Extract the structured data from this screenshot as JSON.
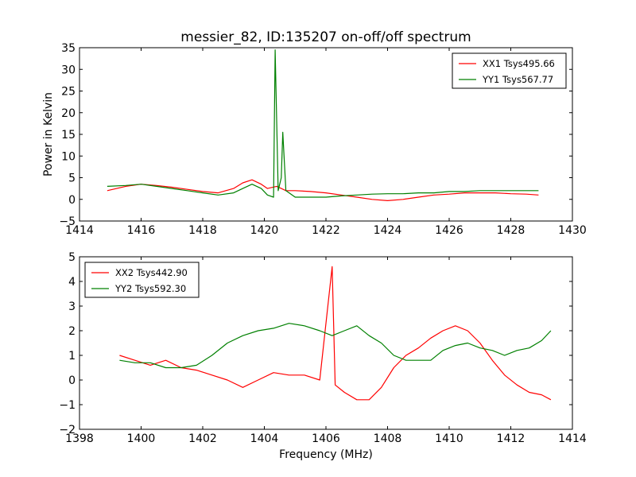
{
  "chart_data": [
    {
      "type": "line",
      "title": "messier_82, ID:135207 on-off/off spectrum",
      "xlabel": "",
      "ylabel": "Power in Kelvin",
      "xlim": [
        1414,
        1430
      ],
      "ylim": [
        -5,
        35
      ],
      "xticks": [
        1414,
        1416,
        1418,
        1420,
        1422,
        1424,
        1426,
        1428,
        1430
      ],
      "yticks": [
        -5,
        0,
        5,
        10,
        15,
        20,
        25,
        30,
        35
      ],
      "grid": false,
      "legend_position": "top-right",
      "series": [
        {
          "name": "XX1 Tsys495.66",
          "color": "#ff0000",
          "x": [
            1414.9,
            1415.5,
            1416.0,
            1416.5,
            1417.0,
            1417.5,
            1418.0,
            1418.5,
            1419.0,
            1419.3,
            1419.6,
            1419.9,
            1420.1,
            1420.4,
            1420.55,
            1420.7,
            1421.0,
            1421.5,
            1422.0,
            1422.5,
            1423.0,
            1423.5,
            1424.0,
            1424.5,
            1425.0,
            1425.5,
            1426.0,
            1426.5,
            1427.0,
            1427.5,
            1428.0,
            1428.5,
            1428.9
          ],
          "y": [
            2.0,
            3.0,
            3.5,
            3.2,
            2.8,
            2.3,
            1.8,
            1.5,
            2.5,
            3.8,
            4.5,
            3.5,
            2.5,
            3.0,
            2.5,
            2.0,
            2.0,
            1.8,
            1.5,
            1.0,
            0.5,
            0.0,
            -0.3,
            0.0,
            0.5,
            1.0,
            1.2,
            1.5,
            1.5,
            1.5,
            1.3,
            1.2,
            1.0
          ]
        },
        {
          "name": "YY1 Tsys567.77",
          "color": "#008000",
          "x": [
            1414.9,
            1415.5,
            1416.0,
            1416.5,
            1417.0,
            1417.5,
            1418.0,
            1418.5,
            1419.0,
            1419.3,
            1419.6,
            1419.9,
            1420.1,
            1420.3,
            1420.35,
            1420.45,
            1420.55,
            1420.6,
            1420.7,
            1421.0,
            1421.5,
            1422.0,
            1422.5,
            1423.0,
            1423.5,
            1424.0,
            1424.5,
            1425.0,
            1425.5,
            1426.0,
            1426.5,
            1427.0,
            1427.5,
            1428.0,
            1428.5,
            1428.9
          ],
          "y": [
            3.0,
            3.2,
            3.5,
            3.0,
            2.5,
            2.0,
            1.5,
            1.0,
            1.5,
            2.5,
            3.5,
            2.5,
            1.0,
            0.5,
            34.5,
            2.0,
            5.0,
            15.5,
            2.0,
            0.5,
            0.5,
            0.5,
            0.8,
            1.0,
            1.2,
            1.3,
            1.3,
            1.5,
            1.5,
            1.8,
            1.8,
            2.0,
            2.0,
            2.0,
            2.0,
            2.0
          ]
        }
      ]
    },
    {
      "type": "line",
      "title": "",
      "xlabel": "Frequency (MHz)",
      "ylabel": "",
      "xlim": [
        1398,
        1414
      ],
      "ylim": [
        -2,
        5
      ],
      "xticks": [
        1398,
        1400,
        1402,
        1404,
        1406,
        1408,
        1410,
        1412,
        1414
      ],
      "yticks": [
        -2,
        -1,
        0,
        1,
        2,
        3,
        4,
        5
      ],
      "grid": false,
      "legend_position": "top-left",
      "series": [
        {
          "name": "XX2 Tsys442.90",
          "color": "#ff0000",
          "x": [
            1399.3,
            1399.8,
            1400.3,
            1400.8,
            1401.3,
            1401.8,
            1402.3,
            1402.8,
            1403.3,
            1403.8,
            1404.3,
            1404.8,
            1405.3,
            1405.8,
            1406.2,
            1406.3,
            1406.6,
            1407.0,
            1407.4,
            1407.8,
            1408.2,
            1408.6,
            1409.0,
            1409.4,
            1409.8,
            1410.2,
            1410.6,
            1411.0,
            1411.4,
            1411.8,
            1412.2,
            1412.6,
            1413.0,
            1413.3
          ],
          "y": [
            1.0,
            0.8,
            0.6,
            0.8,
            0.5,
            0.4,
            0.2,
            0.0,
            -0.3,
            0.0,
            0.3,
            0.2,
            0.2,
            0.0,
            4.6,
            -0.2,
            -0.5,
            -0.8,
            -0.8,
            -0.3,
            0.5,
            1.0,
            1.3,
            1.7,
            2.0,
            2.2,
            2.0,
            1.5,
            0.8,
            0.2,
            -0.2,
            -0.5,
            -0.6,
            -0.8
          ]
        },
        {
          "name": "YY2 Tsys592.30",
          "color": "#008000",
          "x": [
            1399.3,
            1399.8,
            1400.3,
            1400.8,
            1401.3,
            1401.8,
            1402.3,
            1402.8,
            1403.3,
            1403.8,
            1404.3,
            1404.8,
            1405.3,
            1405.8,
            1406.2,
            1406.6,
            1407.0,
            1407.4,
            1407.8,
            1408.2,
            1408.6,
            1409.0,
            1409.4,
            1409.8,
            1410.2,
            1410.6,
            1411.0,
            1411.4,
            1411.8,
            1412.2,
            1412.6,
            1413.0,
            1413.3
          ],
          "y": [
            0.8,
            0.7,
            0.7,
            0.5,
            0.5,
            0.6,
            1.0,
            1.5,
            1.8,
            2.0,
            2.1,
            2.3,
            2.2,
            2.0,
            1.8,
            2.0,
            2.2,
            1.8,
            1.5,
            1.0,
            0.8,
            0.8,
            0.8,
            1.2,
            1.4,
            1.5,
            1.3,
            1.2,
            1.0,
            1.2,
            1.3,
            1.6,
            2.0
          ]
        }
      ]
    }
  ]
}
